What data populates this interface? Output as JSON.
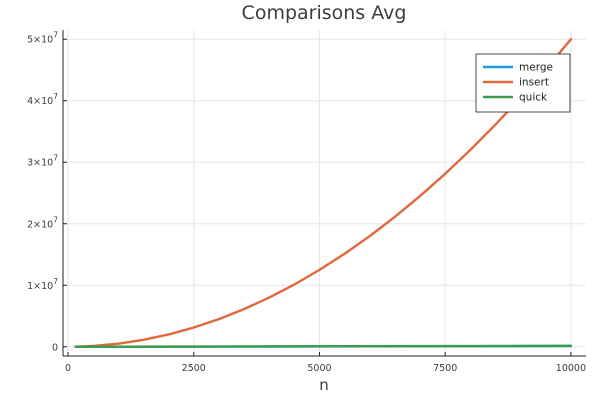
{
  "chart_data": {
    "type": "line",
    "title": "Comparisons Avg",
    "xlabel": "n",
    "ylabel": "",
    "xlim": [
      -100,
      10300
    ],
    "ylim": [
      -1500000,
      51500000
    ],
    "xticks": [
      0,
      2500,
      5000,
      7500,
      10000
    ],
    "xtick_labels": [
      "0",
      "2500",
      "5000",
      "7500",
      "10000"
    ],
    "yticks": [
      0,
      10000000,
      20000000,
      30000000,
      40000000,
      50000000
    ],
    "ytick_labels": [
      {
        "base": "0",
        "exp": ""
      },
      {
        "base": "1×10",
        "exp": "7"
      },
      {
        "base": "2×10",
        "exp": "7"
      },
      {
        "base": "3×10",
        "exp": "7"
      },
      {
        "base": "4×10",
        "exp": "7"
      },
      {
        "base": "5×10",
        "exp": "7"
      }
    ],
    "grid": true,
    "legend_position": "top-right",
    "series": [
      {
        "name": "merge",
        "color": "#1f9be0",
        "x": [
          150,
          1000,
          2000,
          3000,
          4000,
          5000,
          6000,
          7000,
          8000,
          9000,
          10000
        ],
        "y": [
          800,
          8700,
          19400,
          30900,
          42800,
          55100,
          67800,
          80400,
          93400,
          106500,
          119600
        ]
      },
      {
        "name": "insert",
        "color": "#e0683c",
        "x": [
          150,
          500,
          1000,
          1500,
          2000,
          2500,
          3000,
          3500,
          4000,
          4500,
          5000,
          5500,
          6000,
          6500,
          7000,
          7500,
          8000,
          8500,
          9000,
          9500,
          10000
        ],
        "y": [
          11000,
          125000,
          500000,
          1125000,
          2000000,
          3125000,
          4500000,
          6125000,
          8000000,
          10125000,
          12500000,
          15125000,
          18000000,
          21125000,
          24500000,
          28125000,
          32000000,
          36125000,
          40500000,
          45125000,
          50000000
        ]
      },
      {
        "name": "quick",
        "color": "#3a9b4b",
        "x": [
          150,
          1000,
          2000,
          3000,
          4000,
          5000,
          6000,
          7000,
          8000,
          9000,
          10000
        ],
        "y": [
          1000,
          11000,
          25000,
          40000,
          55000,
          71000,
          87000,
          104000,
          120000,
          137000,
          154000
        ]
      }
    ]
  }
}
